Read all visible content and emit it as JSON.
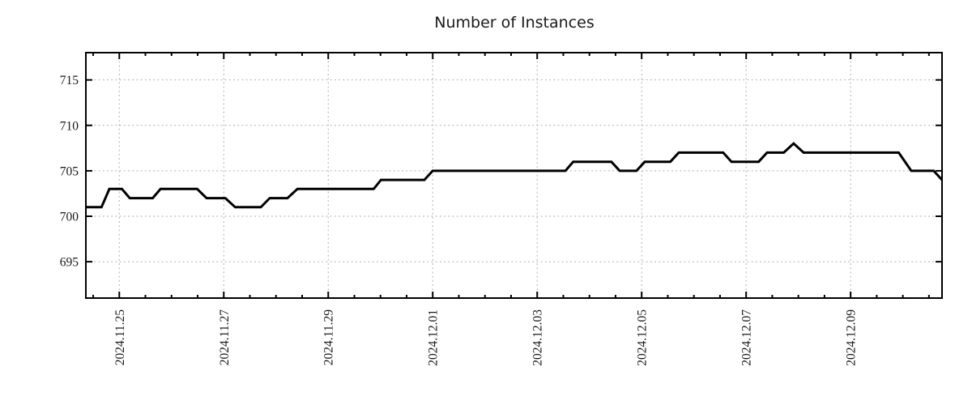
{
  "chart_data": {
    "type": "line",
    "title": "Number of Instances",
    "legend": "none",
    "grid": "dotted",
    "x_axis": {
      "unit": "days since 2024.11.25",
      "xlim": [
        -0.64,
        15.75
      ],
      "major_tick_positions": [
        0,
        2,
        4,
        6,
        8,
        10,
        12,
        14
      ],
      "major_tick_labels": [
        "2024.11.25",
        "2024.11.27",
        "2024.11.29",
        "2024.12.01",
        "2024.12.03",
        "2024.12.05",
        "2024.12.07",
        "2024.12.09"
      ],
      "minor_tick_step": 0.5
    },
    "y_axis": {
      "ylim": [
        691,
        718
      ],
      "tick_values": [
        695,
        700,
        705,
        710,
        715
      ],
      "tick_labels": [
        "695",
        "700",
        "705",
        "710",
        "715"
      ]
    },
    "series": [
      {
        "name": "instances",
        "color": "#000000",
        "points": [
          [
            -0.64,
            701
          ],
          [
            -0.34,
            701
          ],
          [
            -0.19,
            703
          ],
          [
            0.05,
            703
          ],
          [
            0.2,
            702
          ],
          [
            0.64,
            702
          ],
          [
            0.79,
            703
          ],
          [
            1.49,
            703
          ],
          [
            1.67,
            702
          ],
          [
            2.03,
            702
          ],
          [
            2.22,
            701
          ],
          [
            2.71,
            701
          ],
          [
            2.88,
            702
          ],
          [
            3.22,
            702
          ],
          [
            3.41,
            703
          ],
          [
            4.87,
            703
          ],
          [
            5.01,
            704
          ],
          [
            5.84,
            704
          ],
          [
            6.0,
            705
          ],
          [
            8.54,
            705
          ],
          [
            8.69,
            706
          ],
          [
            9.42,
            706
          ],
          [
            9.58,
            705
          ],
          [
            9.9,
            705
          ],
          [
            10.06,
            706
          ],
          [
            10.55,
            706
          ],
          [
            10.71,
            707
          ],
          [
            11.56,
            707
          ],
          [
            11.72,
            706
          ],
          [
            12.24,
            706
          ],
          [
            12.4,
            707
          ],
          [
            12.72,
            707
          ],
          [
            12.91,
            708
          ],
          [
            13.1,
            707
          ],
          [
            14.92,
            707
          ],
          [
            15.16,
            705
          ],
          [
            15.59,
            705
          ],
          [
            15.75,
            704
          ]
        ]
      }
    ],
    "colors": {
      "line": "#000000",
      "grid": "#b0b0b0",
      "border": "#000000",
      "text": "#1a1a1a",
      "background": "#ffffff"
    }
  }
}
